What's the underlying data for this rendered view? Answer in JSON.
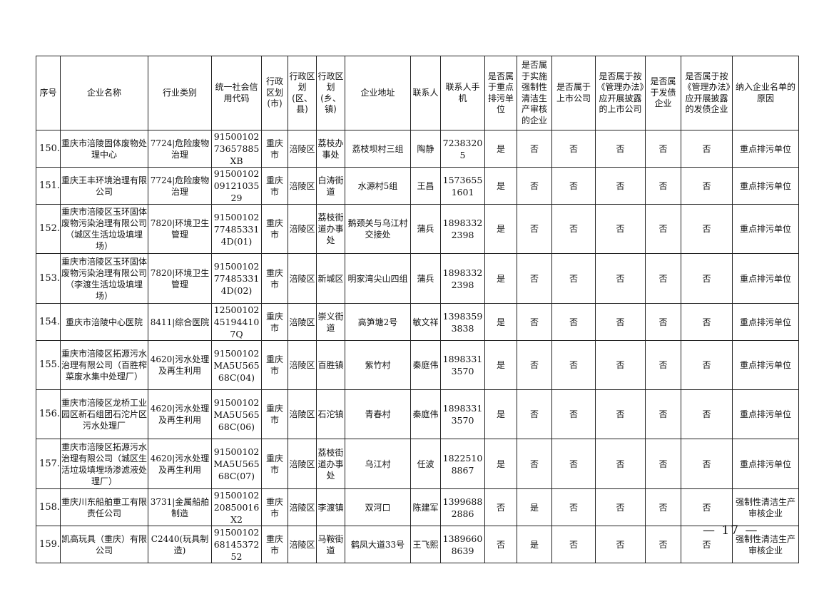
{
  "headers": [
    "序号",
    "企业名称",
    "行业类别",
    "统一社会信用代码",
    "行政区划(市)",
    "行政区划(区、县)",
    "行政区划(乡、镇)",
    "企业地址",
    "联系人",
    "联系人手机",
    "是否属于重点排污单位",
    "是否属于实施强制性清洁生产审核的企业",
    "是否属于上市公司",
    "是否属于按《管理办法》应开展披露的上市公司",
    "是否属于发债企业",
    "是否属于按《管理办法》应开展披露的发债企业",
    "纳入企业名单的原因"
  ],
  "rows": [
    [
      "150.",
      "重庆市涪陵固体废物处理中心",
      "7724|危险废物治理",
      "9150010273657885XB",
      "重庆市",
      "涪陵区",
      "荔枝办事处",
      "荔枝坝村三组",
      "陶静",
      "72383205",
      "是",
      "否",
      "否",
      "否",
      "否",
      "否",
      "重点排污单位"
    ],
    [
      "151.",
      "重庆王丰环境治理有限公司",
      "7724|危险废物治理",
      "915001020912103529",
      "重庆市",
      "涪陵区",
      "白涛街道",
      "水源村5组",
      "王昌",
      "15736551601",
      "是",
      "否",
      "否",
      "否",
      "否",
      "否",
      "重点排污单位"
    ],
    [
      "152.",
      "重庆市涪陵区玉环固体废物污染治理有限公司（城区生活垃圾填埋场）",
      "7820|环境卫生管理",
      "91500102774853314D(01)",
      "重庆市",
      "涪陵区",
      "荔枝街道办事处",
      "鹅颈关与乌江村交接处",
      "蒲兵",
      "18983322398",
      "是",
      "否",
      "否",
      "否",
      "否",
      "否",
      "重点排污单位"
    ],
    [
      "153.",
      "重庆市涪陵区玉环固体废物污染治理有限公司（李渡生活垃圾填埋场）",
      "7820|环境卫生管理",
      "91500102774853314D(02)",
      "重庆市",
      "涪陵区",
      "新城区",
      "明家湾尖山四组",
      "蒲兵",
      "18983322398",
      "是",
      "否",
      "否",
      "否",
      "否",
      "否",
      "重点排污单位"
    ],
    [
      "154.",
      "重庆市涪陵中心医院",
      "8411|综合医院",
      "12500102451944107Q",
      "重庆市",
      "涪陵区",
      "崇义街道",
      "高笋塘2号",
      "敏文祥",
      "13983593838",
      "是",
      "否",
      "否",
      "否",
      "否",
      "否",
      "重点排污单位"
    ],
    [
      "155.",
      "重庆市涪陵区拓源污水治理有限公司（百胜榨菜废水集中处理厂）",
      "4620|污水处理及再生利用",
      "91500102MA5U56568C(04)",
      "重庆市",
      "涪陵区",
      "百胜镇",
      "紫竹村",
      "秦庭伟",
      "18983313570",
      "是",
      "否",
      "否",
      "否",
      "否",
      "否",
      "重点排污单位"
    ],
    [
      "156.",
      "重庆市涪陵区龙桥工业园区新石组团石沱片区污水处理厂",
      "4620|污水处理及再生利用",
      "91500102MA5U56568C(06)",
      "重庆市",
      "涪陵区",
      "石沱镇",
      "青春村",
      "秦庭伟",
      "18983313570",
      "是",
      "否",
      "否",
      "否",
      "否",
      "否",
      "重点排污单位"
    ],
    [
      "157.",
      "重庆市涪陵区拓源污水治理有限公司（城区生活垃圾填埋场渗滤液处理厂）",
      "4620|污水处理及再生利用",
      "91500102MA5U56568C(07)",
      "重庆市",
      "涪陵区",
      "荔枝街道办事处",
      "乌江村",
      "任波",
      "18225108867",
      "是",
      "否",
      "否",
      "否",
      "否",
      "否",
      "重点排污单位"
    ],
    [
      "158.",
      "重庆川东船舶重工有限责任公司",
      "3731|金属船舶制造",
      "9150010220850016X2",
      "重庆市",
      "涪陵区",
      "李渡镇",
      "双河口",
      "陈建军",
      "13996882886",
      "否",
      "是",
      "否",
      "否",
      "否",
      "否",
      "强制性清洁生产审核企业"
    ],
    [
      "159.",
      "凯高玩具（重庆）有限公司",
      "C2440(玩具制造)",
      "915001026814537252",
      "重庆市",
      "涪陵区",
      "马鞍街道",
      "鹤凤大道33号",
      "王飞熙",
      "13896608639",
      "否",
      "是",
      "否",
      "否",
      "否",
      "否",
      "强制性清洁生产审核企业"
    ]
  ],
  "page_number": "— 17 —"
}
